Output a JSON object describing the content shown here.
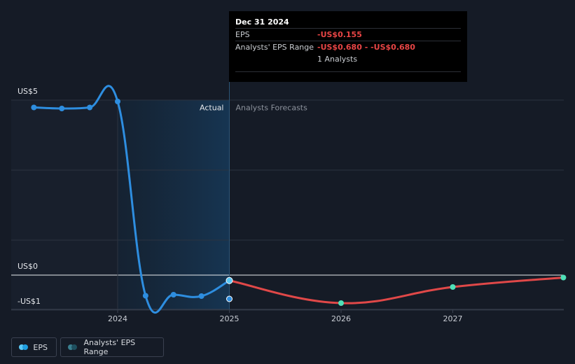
{
  "chart_data": {
    "type": "line",
    "y_axis": {
      "min": -1,
      "max": 5,
      "tick_labels": [
        "US$5",
        "US$0",
        "-US$1"
      ]
    },
    "x_axis": {
      "tick_labels": [
        "2024",
        "2025",
        "2026",
        "2027"
      ]
    },
    "zones": {
      "actual_label": "Actual",
      "forecast_label": "Analysts Forecasts"
    },
    "series": [
      {
        "name": "EPS",
        "color": "#2e8ee0",
        "points": [
          {
            "x": 2023.25,
            "y": 4.79
          },
          {
            "x": 2023.5,
            "y": 4.76
          },
          {
            "x": 2023.75,
            "y": 4.79
          },
          {
            "x": 2024.0,
            "y": 4.96
          },
          {
            "x": 2024.25,
            "y": -0.59
          },
          {
            "x": 2024.5,
            "y": -0.56
          },
          {
            "x": 2024.75,
            "y": -0.6
          },
          {
            "x": 2025.0,
            "y": -0.155
          }
        ]
      },
      {
        "name": "Analysts' EPS Forecast",
        "color": "#e04848",
        "points": [
          {
            "x": 2025.0,
            "y": -0.155
          },
          {
            "x": 2026.0,
            "y": -0.8
          },
          {
            "x": 2027.0,
            "y": -0.34
          },
          {
            "x": 2027.99,
            "y": -0.07
          }
        ]
      }
    ],
    "range_point": {
      "x": 2025.0,
      "y": -0.68
    },
    "legend": [
      {
        "label": "EPS",
        "colors": [
          "#5bc8f5",
          "#1f9ee0"
        ]
      },
      {
        "label": "Analysts' EPS Range",
        "colors": [
          "#3a7f8f",
          "#1e4f5f"
        ]
      }
    ],
    "tooltip": {
      "date": "Dec 31 2024",
      "rows": [
        {
          "label": "EPS",
          "value": "-US$0.155"
        },
        {
          "label": "Analysts' EPS Range",
          "value": "-US$0.680 - -US$0.680"
        },
        {
          "label": "",
          "value": "1 Analysts"
        }
      ]
    }
  }
}
